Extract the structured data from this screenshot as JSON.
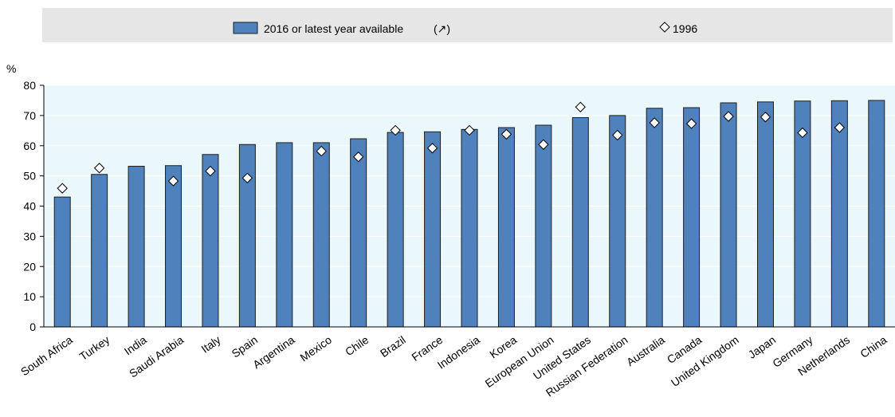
{
  "chart_data": {
    "type": "bar",
    "ylabel": "%",
    "ylim": [
      0,
      80
    ],
    "yticks": [
      0,
      10,
      20,
      30,
      40,
      50,
      60,
      70,
      80
    ],
    "legend": {
      "placement": "top",
      "bar_label": "2016 or latest year available",
      "bar_label_suffix": "(↗)",
      "marker_label": "1996"
    },
    "categories": [
      "South Africa",
      "Turkey",
      "India",
      "Saudi Arabia",
      "Italy",
      "Spain",
      "Argentina",
      "Mexico",
      "Chile",
      "Brazil",
      "France",
      "Indonesia",
      "Korea",
      "European Union",
      "United States",
      "Russian Federation",
      "Australia",
      "Canada",
      "United Kingdom",
      "Japan",
      "Germany",
      "Netherlands",
      "China"
    ],
    "series": [
      {
        "name": "2016 or latest year available",
        "kind": "bar",
        "values": [
          43.0,
          50.5,
          53.2,
          53.4,
          57.1,
          60.4,
          61.0,
          61.0,
          62.3,
          64.4,
          64.6,
          65.4,
          66.0,
          66.8,
          69.3,
          70.0,
          72.4,
          72.6,
          74.2,
          74.5,
          74.8,
          74.9,
          75.0
        ]
      },
      {
        "name": "1996",
        "kind": "marker",
        "values": [
          45.9,
          52.6,
          null,
          48.3,
          51.6,
          49.3,
          null,
          58.2,
          56.3,
          65.1,
          59.2,
          65.1,
          63.8,
          60.4,
          72.8,
          63.5,
          67.6,
          67.3,
          69.7,
          69.5,
          64.3,
          66.0,
          null
        ]
      }
    ],
    "colors": {
      "bar_fill": "#4f81bd",
      "bar_stroke": "#1f1f1f",
      "plot_bg": "#eaf7fb",
      "legend_bg": "#e6e6e6",
      "marker_fill": "#ffffff",
      "marker_stroke": "#000000"
    }
  }
}
